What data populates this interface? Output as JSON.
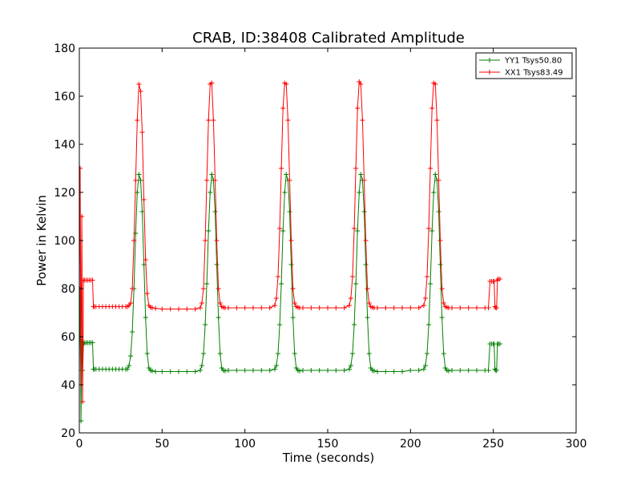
{
  "chart_data": {
    "type": "line",
    "title": "CRAB, ID:38408 Calibrated Amplitude",
    "xlabel": "Time (seconds)",
    "ylabel": "Power in Kelvin",
    "xlim": [
      0,
      300
    ],
    "ylim": [
      20,
      180
    ],
    "xticks": [
      "0",
      "50",
      "100",
      "150",
      "200",
      "250",
      "300"
    ],
    "yticks": [
      "20",
      "40",
      "60",
      "80",
      "100",
      "120",
      "140",
      "160",
      "180"
    ],
    "grid": false,
    "legend_position": "top-right",
    "marker": "+",
    "series": [
      {
        "name": "YY1 Tsys50.80",
        "color": "#008000",
        "x": [
          0,
          0.5,
          1,
          1.5,
          2,
          2.5,
          3,
          4,
          5,
          6,
          7,
          8,
          8.5,
          9,
          10,
          12,
          14,
          16,
          18,
          20,
          22,
          24,
          26,
          28,
          29,
          30,
          31,
          32,
          33,
          34,
          35,
          36,
          37,
          38,
          39,
          40,
          41,
          42,
          43,
          44,
          46,
          50,
          55,
          60,
          65,
          70,
          73,
          74,
          75,
          76,
          77,
          78,
          79,
          80,
          81,
          82,
          83,
          84,
          85,
          86,
          87,
          88,
          90,
          95,
          100,
          105,
          110,
          115,
          118,
          119,
          120,
          121,
          122,
          123,
          124,
          125,
          126,
          127,
          128,
          129,
          130,
          131,
          132,
          133,
          135,
          140,
          145,
          150,
          155,
          160,
          163,
          164,
          165,
          166,
          167,
          168,
          169,
          170,
          171,
          172,
          173,
          174,
          175,
          176,
          177,
          178,
          180,
          185,
          190,
          195,
          200,
          205,
          208,
          209,
          210,
          211,
          212,
          213,
          214,
          215,
          216,
          217,
          218,
          219,
          220,
          221,
          222,
          223,
          225,
          230,
          235,
          240,
          245,
          247,
          248,
          249,
          250,
          250.5,
          251,
          251.5,
          252,
          252.5,
          253,
          254
        ],
        "y": [
          46,
          80,
          25,
          58,
          46,
          57,
          57.5,
          57.5,
          57.5,
          57.5,
          57.5,
          57.5,
          46.5,
          46.5,
          46.5,
          46.5,
          46.5,
          46.5,
          46.5,
          46.5,
          46.5,
          46.5,
          46.5,
          46.5,
          46.5,
          48,
          52,
          62,
          80,
          103,
          120,
          127.5,
          125,
          112,
          90,
          68,
          53,
          47,
          46,
          45.8,
          45.5,
          45.5,
          45.5,
          45.5,
          45.5,
          45.5,
          46,
          48,
          53,
          65,
          82,
          104,
          120,
          127.5,
          125,
          112,
          90,
          68,
          53,
          47,
          46,
          45.8,
          46,
          46,
          46,
          46,
          46,
          46,
          46.5,
          48,
          53,
          65,
          82,
          104,
          120,
          127.5,
          125,
          112,
          90,
          68,
          53,
          47,
          46,
          45.8,
          46,
          46,
          46,
          46,
          46,
          46,
          46.5,
          48,
          53,
          65,
          82,
          104,
          120,
          127.5,
          125,
          112,
          90,
          68,
          53,
          47,
          46,
          45.8,
          45.5,
          45.5,
          45.5,
          45.5,
          46,
          46,
          46.5,
          48,
          53,
          65,
          82,
          104,
          120,
          127.5,
          125,
          112,
          90,
          68,
          53,
          47,
          46,
          45.8,
          46,
          46,
          46,
          46,
          46,
          46,
          57,
          57,
          57,
          57,
          46.5,
          46,
          46,
          57,
          57,
          57
        ]
      },
      {
        "name": "XX1 Tsys83.49",
        "color": "#ff0000",
        "x": [
          0,
          0.5,
          1,
          1.5,
          2,
          2.5,
          3,
          4,
          5,
          6,
          7,
          8,
          8.5,
          9,
          10,
          12,
          14,
          16,
          18,
          20,
          22,
          24,
          26,
          28,
          29,
          30,
          31,
          32,
          33,
          34,
          35,
          36,
          37,
          38,
          39,
          40,
          41,
          42,
          43,
          44,
          46,
          50,
          55,
          60,
          65,
          70,
          73,
          74,
          75,
          76,
          77,
          78,
          79,
          80,
          81,
          82,
          83,
          84,
          85,
          86,
          87,
          88,
          90,
          95,
          100,
          105,
          110,
          115,
          118,
          119,
          120,
          121,
          122,
          123,
          124,
          125,
          126,
          127,
          128,
          129,
          130,
          131,
          132,
          133,
          135,
          140,
          145,
          150,
          155,
          160,
          163,
          164,
          165,
          166,
          167,
          168,
          169,
          170,
          171,
          172,
          173,
          174,
          175,
          176,
          177,
          178,
          180,
          185,
          190,
          195,
          200,
          205,
          208,
          209,
          210,
          211,
          212,
          213,
          214,
          215,
          216,
          217,
          218,
          219,
          220,
          221,
          222,
          223,
          225,
          230,
          235,
          240,
          245,
          247,
          248,
          249,
          250,
          250.5,
          251,
          251.5,
          252,
          252.5,
          253,
          254
        ],
        "y": [
          72,
          130,
          40,
          110,
          33,
          83.5,
          83.5,
          83.5,
          83.5,
          83.5,
          83.5,
          83.5,
          72.5,
          72.5,
          72.5,
          72.5,
          72.5,
          72.5,
          72.5,
          72.5,
          72.5,
          72.5,
          72.5,
          72.5,
          72.5,
          73,
          74,
          80,
          100,
          125,
          150,
          165,
          162,
          145,
          117,
          92,
          78,
          73,
          72.2,
          72,
          71.8,
          71.5,
          71.5,
          71.5,
          71.5,
          71.5,
          72,
          74,
          80,
          100,
          125,
          150,
          165,
          165.5,
          150,
          125,
          100,
          80,
          74,
          72.5,
          72.2,
          72,
          72,
          72,
          72,
          72,
          72,
          72,
          73,
          76,
          85,
          105,
          130,
          155,
          165.5,
          165,
          150,
          125,
          100,
          80,
          74,
          72.5,
          72.2,
          72,
          72,
          72,
          72,
          72,
          72,
          72,
          73,
          76,
          85,
          105,
          130,
          155,
          166,
          165,
          150,
          125,
          100,
          80,
          74,
          72.5,
          72.2,
          72,
          72,
          72,
          72,
          72,
          72,
          72,
          73,
          76,
          85,
          105,
          130,
          155,
          165.5,
          165,
          150,
          125,
          100,
          80,
          74,
          72.5,
          72.2,
          72,
          72,
          72,
          72,
          72,
          72,
          72,
          83,
          83,
          83,
          83,
          72.5,
          72,
          72,
          83.5,
          84,
          84
        ]
      }
    ]
  }
}
